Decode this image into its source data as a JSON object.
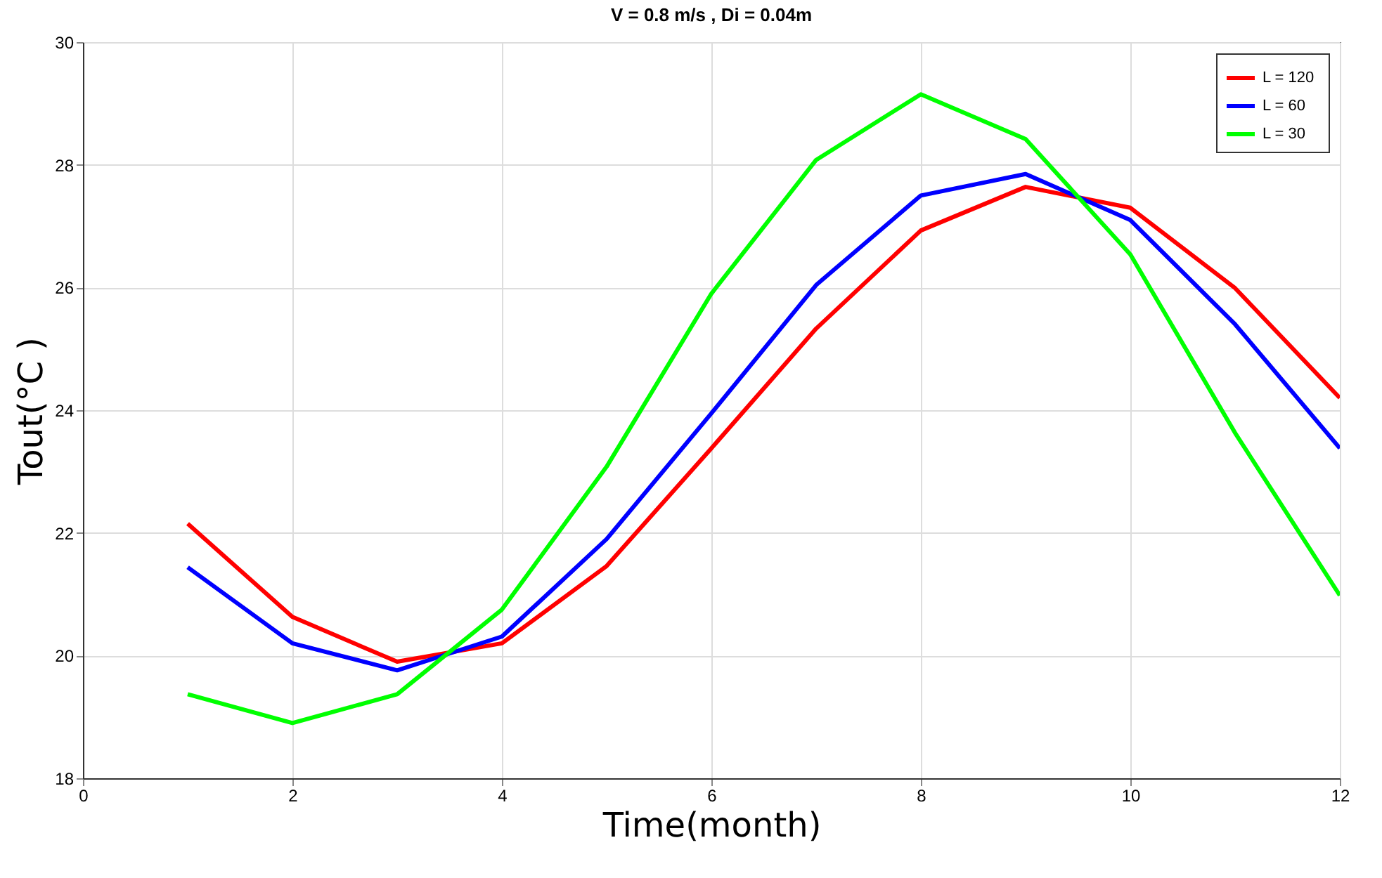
{
  "chart_data": {
    "type": "line",
    "title": "V = 0.8 m/s  , Di =  0.04m",
    "xlabel": "Time(month)",
    "ylabel": "Tout(°C )",
    "x": [
      1,
      2,
      3,
      4,
      5,
      6,
      7,
      8,
      9,
      10,
      11,
      12
    ],
    "series": [
      {
        "name": "L  = 120",
        "color": "#ff0000",
        "values": [
          22.15,
          20.63,
          19.9,
          20.2,
          21.46,
          23.38,
          25.33,
          26.93,
          27.64,
          27.3,
          25.99,
          24.2
        ]
      },
      {
        "name": "L = 60",
        "color": "#0000ff",
        "values": [
          21.44,
          20.2,
          19.76,
          20.31,
          21.9,
          23.95,
          26.04,
          27.5,
          27.85,
          27.1,
          25.4,
          23.38
        ]
      },
      {
        "name": "L = 30",
        "color": "#00ff00",
        "values": [
          19.37,
          18.9,
          19.37,
          20.75,
          23.08,
          25.9,
          28.08,
          29.15,
          28.42,
          26.54,
          23.63,
          20.98
        ]
      }
    ],
    "xlim": [
      0,
      12
    ],
    "xticks": [
      0,
      2,
      4,
      6,
      8,
      10,
      12
    ],
    "ylim": [
      18,
      30
    ],
    "yticks": [
      18,
      20,
      22,
      24,
      26,
      28,
      30
    ],
    "grid": true,
    "legend": "top right",
    "marker": "none",
    "line_style": "solid"
  }
}
